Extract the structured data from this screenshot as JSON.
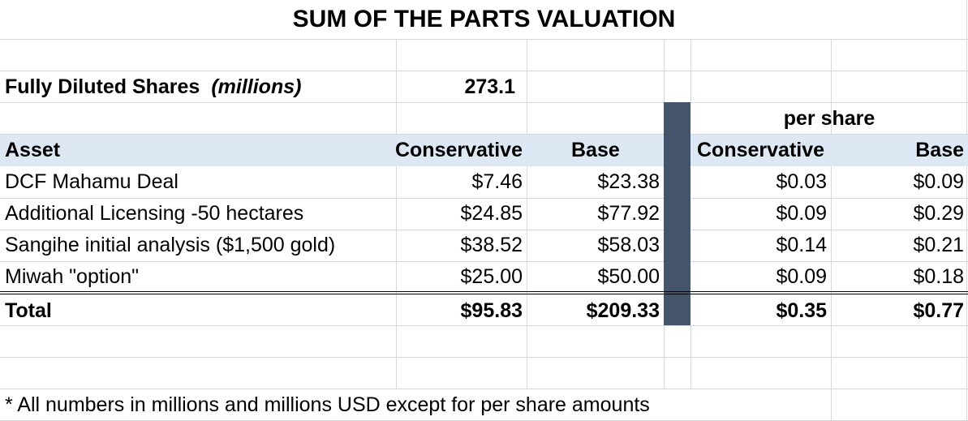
{
  "title": "SUM OF THE PARTS VALUATION",
  "shares": {
    "label": "Fully Diluted Shares",
    "unit": "(millions)",
    "value": "273.1"
  },
  "per_share_header": "per share",
  "columns": {
    "asset": "Asset",
    "conservative": "Conservative",
    "base": "Base",
    "ps_conservative": "Conservative",
    "ps_base": "Base"
  },
  "rows": [
    {
      "asset": "DCF Mahamu Deal",
      "conservative": "$7.46",
      "base": "$23.38",
      "ps_conservative": "$0.03",
      "ps_base": "$0.09"
    },
    {
      "asset": "Additional Licensing -50 hectares",
      "conservative": "$24.85",
      "base": "$77.92",
      "ps_conservative": "$0.09",
      "ps_base": "$0.29"
    },
    {
      "asset": "Sangihe initial analysis  ($1,500 gold)",
      "conservative": "$38.52",
      "base": "$58.03",
      "ps_conservative": "$0.14",
      "ps_base": "$0.21"
    },
    {
      "asset": "Miwah \"option\"",
      "conservative": "$25.00",
      "base": "$50.00",
      "ps_conservative": "$0.09",
      "ps_base": "$0.18"
    }
  ],
  "total": {
    "asset": "Total",
    "conservative": "$95.83",
    "base": "$209.33",
    "ps_conservative": "$0.35",
    "ps_base": "$0.77"
  },
  "footnote": "* All numbers in millions and millions USD except for per share amounts",
  "colors": {
    "header_band": "#dde8f4",
    "separator_column": "#44546a",
    "gridline": "#d9d9d9"
  }
}
